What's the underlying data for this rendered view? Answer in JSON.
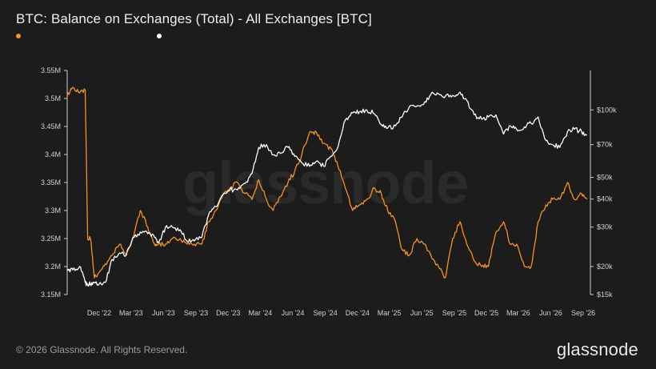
{
  "header": {
    "title": "BTC: Balance on Exchanges (Total) - All Exchanges [BTC]"
  },
  "watermark": "glassnode",
  "footer": {
    "copyright": "© 2026 Glassnode. All Rights Reserved.",
    "logo": "glassnode"
  },
  "chart_data": {
    "type": "line",
    "title": "BTC: Balance on Exchanges (Total) - All Exchanges [BTC]",
    "xlabel": "",
    "ylabel": "",
    "grid": false,
    "legend": "top-left",
    "x_ticks": [
      "Dec '22",
      "Mar '23",
      "Jun '23",
      "Sep '23",
      "Dec '23",
      "Mar '24",
      "Jun '24",
      "Sep '24",
      "Dec '24",
      "Mar '25",
      "Jun '25",
      "Sep '25",
      "Dec '25",
      "Mar '26",
      "Jun '26",
      "Sep '26"
    ],
    "y_left": {
      "ticks": [
        "3.15M",
        "3.2M",
        "3.25M",
        "3.3M",
        "3.35M",
        "3.4M",
        "3.45M",
        "3.5M",
        "3.55M"
      ],
      "range": [
        3150000,
        3550000
      ]
    },
    "y_right": {
      "scale": "log",
      "ticks": [
        "$15k",
        "$20k",
        "$30k",
        "$40k",
        "$50k",
        "$70k",
        "$100k"
      ],
      "tick_values": [
        15000,
        20000,
        30000,
        40000,
        50000,
        70000,
        100000
      ],
      "range": [
        15000,
        150000
      ]
    },
    "series": [
      {
        "color": "#f7931a",
        "axis": "left",
        "x": [
          "2022-09-15",
          "2022-10-01",
          "2022-10-20",
          "2022-11-05",
          "2022-11-12",
          "2022-11-20",
          "2022-12-01",
          "2022-12-15",
          "2023-01-01",
          "2023-01-20",
          "2023-02-10",
          "2023-03-01",
          "2023-03-20",
          "2023-04-10",
          "2023-05-01",
          "2023-05-20",
          "2023-06-01",
          "2023-06-20",
          "2023-07-10",
          "2023-08-01",
          "2023-08-20",
          "2023-09-10",
          "2023-10-01",
          "2023-10-20",
          "2023-11-10",
          "2023-12-01",
          "2023-12-20",
          "2024-01-10",
          "2024-02-01",
          "2024-02-20",
          "2024-03-10",
          "2024-04-01",
          "2024-04-20",
          "2024-05-10",
          "2024-06-01",
          "2024-06-20",
          "2024-07-10",
          "2024-08-01",
          "2024-08-20",
          "2024-09-10",
          "2024-10-01",
          "2024-10-20",
          "2024-11-10",
          "2024-12-01",
          "2024-12-20",
          "2025-01-10",
          "2025-02-01",
          "2025-02-20",
          "2025-03-10",
          "2025-04-01",
          "2025-04-20",
          "2025-05-10",
          "2025-06-01",
          "2025-06-20",
          "2025-07-10",
          "2025-08-01",
          "2025-08-20",
          "2025-09-10",
          "2025-10-01",
          "2025-10-20",
          "2025-11-10",
          "2025-12-01",
          "2025-12-20",
          "2026-01-10",
          "2026-02-01",
          "2026-02-20",
          "2026-03-10",
          "2026-04-01",
          "2026-04-20",
          "2026-05-10",
          "2026-06-01",
          "2026-06-20",
          "2026-07-10",
          "2026-08-01",
          "2026-08-20",
          "2026-09-10",
          "2026-09-25"
        ],
        "values": [
          3505000,
          3520000,
          3510000,
          3515000,
          3250000,
          3250000,
          3180000,
          3190000,
          3205000,
          3220000,
          3240000,
          3220000,
          3250000,
          3300000,
          3270000,
          3240000,
          3240000,
          3240000,
          3250000,
          3250000,
          3240000,
          3240000,
          3240000,
          3280000,
          3300000,
          3330000,
          3340000,
          3350000,
          3330000,
          3320000,
          3355000,
          3320000,
          3300000,
          3325000,
          3350000,
          3370000,
          3400000,
          3440000,
          3440000,
          3420000,
          3410000,
          3380000,
          3340000,
          3300000,
          3310000,
          3320000,
          3340000,
          3330000,
          3300000,
          3280000,
          3230000,
          3220000,
          3250000,
          3240000,
          3220000,
          3200000,
          3180000,
          3250000,
          3280000,
          3240000,
          3210000,
          3200000,
          3200000,
          3260000,
          3280000,
          3240000,
          3240000,
          3200000,
          3200000,
          3280000,
          3310000,
          3320000,
          3320000,
          3350000,
          3320000,
          3330000,
          3320000
        ]
      },
      {
        "color": "#ffffff",
        "axis": "right",
        "x": [
          "2022-09-15",
          "2022-10-01",
          "2022-10-20",
          "2022-11-05",
          "2022-11-12",
          "2022-11-20",
          "2022-12-01",
          "2022-12-15",
          "2023-01-01",
          "2023-01-20",
          "2023-02-10",
          "2023-03-01",
          "2023-03-20",
          "2023-04-10",
          "2023-05-01",
          "2023-05-20",
          "2023-06-01",
          "2023-06-20",
          "2023-07-10",
          "2023-08-01",
          "2023-08-20",
          "2023-09-10",
          "2023-10-01",
          "2023-10-20",
          "2023-11-10",
          "2023-12-01",
          "2023-12-20",
          "2024-01-10",
          "2024-02-01",
          "2024-02-20",
          "2024-03-10",
          "2024-04-01",
          "2024-04-20",
          "2024-05-10",
          "2024-06-01",
          "2024-06-20",
          "2024-07-10",
          "2024-08-01",
          "2024-08-20",
          "2024-09-10",
          "2024-10-01",
          "2024-10-20",
          "2024-11-10",
          "2024-12-01",
          "2024-12-20",
          "2025-01-10",
          "2025-02-01",
          "2025-02-20",
          "2025-03-10",
          "2025-04-01",
          "2025-04-20",
          "2025-05-10",
          "2025-06-01",
          "2025-06-20",
          "2025-07-10",
          "2025-08-01",
          "2025-08-20",
          "2025-09-10",
          "2025-10-01",
          "2025-10-20",
          "2025-11-10",
          "2025-12-01",
          "2025-12-20",
          "2026-01-10",
          "2026-02-01",
          "2026-02-20",
          "2026-03-10",
          "2026-04-01",
          "2026-04-20",
          "2026-05-10",
          "2026-06-01",
          "2026-06-20",
          "2026-07-10",
          "2026-08-01",
          "2026-08-20",
          "2026-09-10",
          "2026-09-25"
        ],
        "values": [
          19500,
          19300,
          20000,
          17000,
          16500,
          16800,
          17000,
          16800,
          17000,
          21500,
          23000,
          22500,
          27000,
          28500,
          28000,
          27000,
          25500,
          30000,
          30000,
          29200,
          26000,
          26000,
          27000,
          34000,
          37000,
          42000,
          44000,
          44000,
          47000,
          52000,
          68000,
          70000,
          63000,
          64000,
          68000,
          62000,
          58000,
          56000,
          59000,
          56000,
          62000,
          68000,
          90000,
          97000,
          98000,
          100000,
          96000,
          86000,
          83000,
          85000,
          93000,
          103000,
          104000,
          106000,
          117000,
          118000,
          115000,
          116000,
          120000,
          110000,
          95000,
          91000,
          93000,
          95000,
          78000,
          85000,
          82000,
          84000,
          87000,
          93000,
          73000,
          70000,
          68000,
          80000,
          82000,
          80000,
          77000
        ]
      }
    ]
  }
}
